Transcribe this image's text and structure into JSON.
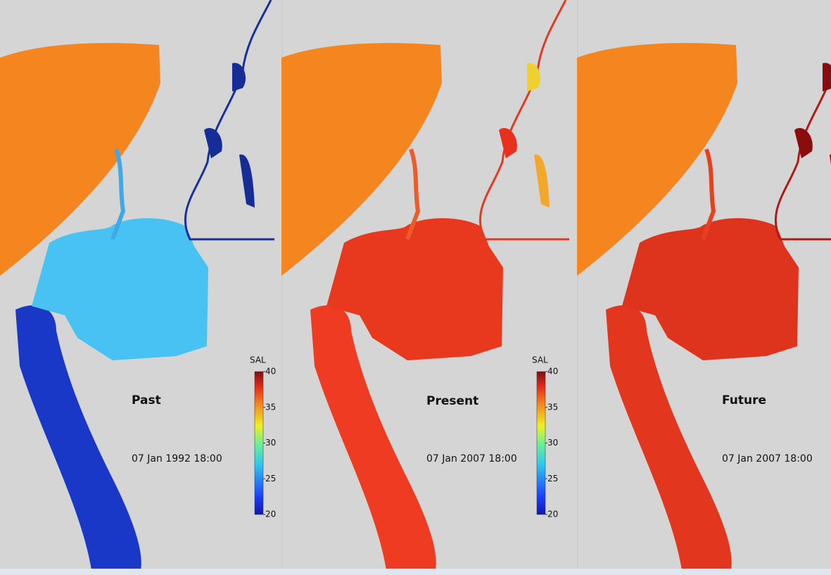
{
  "panels": [
    {
      "title": "Past",
      "timestamp": "07 Jan 1992 18:00",
      "colorbar": {
        "label": "SAL",
        "range": [
          20,
          40
        ],
        "ticks": [
          20,
          25,
          30,
          35,
          40
        ]
      }
    },
    {
      "title": "Present",
      "timestamp": "07 Jan 2007 18:00",
      "colorbar": {
        "label": "SAL",
        "range": [
          20,
          40
        ],
        "ticks": [
          20,
          25,
          30,
          35,
          40
        ]
      }
    },
    {
      "title": "Future",
      "timestamp": "07 Jan 2007 18:00"
    }
  ]
}
